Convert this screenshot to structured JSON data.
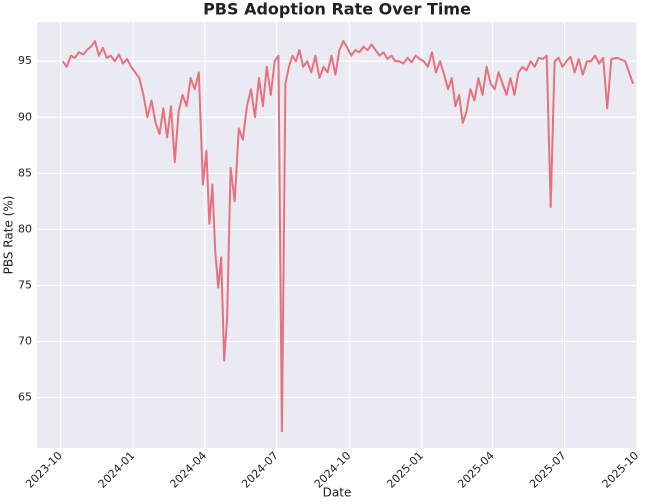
{
  "chart_data": {
    "type": "line",
    "title": "PBS Adoption Rate Over Time",
    "xlabel": "Date",
    "ylabel": "PBS Rate (%)",
    "color": "#e8717f",
    "grid": true,
    "xlim": [
      "2023-09",
      "2025-10"
    ],
    "ylim": [
      60.5,
      98.5
    ],
    "xticks": [
      "2023-10",
      "2024-01",
      "2024-04",
      "2024-07",
      "2024-10",
      "2025-01",
      "2025-04",
      "2025-07",
      "2025-10"
    ],
    "yticks": [
      65,
      70,
      75,
      80,
      85,
      90,
      95
    ],
    "x": [
      "2023-10",
      "2023-10",
      "2023-10",
      "2023-10",
      "2023-10",
      "2023-10",
      "2023-11",
      "2023-11",
      "2023-11",
      "2023-11",
      "2023-11",
      "2023-11",
      "2023-12",
      "2023-12",
      "2023-12",
      "2023-12",
      "2023-12",
      "2023-12",
      "2024-01",
      "2024-01",
      "2024-01",
      "2024-01",
      "2024-01",
      "2024-01",
      "2024-02",
      "2024-02",
      "2024-02",
      "2024-02",
      "2024-02",
      "2024-02",
      "2024-03",
      "2024-03",
      "2024-03",
      "2024-03",
      "2024-03",
      "2024-03",
      "2024-04",
      "2024-04",
      "2024-04",
      "2024-04",
      "2024-04",
      "2024-04",
      "2024-04",
      "2024-04",
      "2024-05",
      "2024-05",
      "2024-05",
      "2024-05",
      "2024-05",
      "2024-05",
      "2024-06",
      "2024-06",
      "2024-06",
      "2024-06",
      "2024-06",
      "2024-06",
      "2024-07",
      "2024-07",
      "2024-07",
      "2024-07",
      "2024-07",
      "2024-07",
      "2024-07",
      "2024-08",
      "2024-08",
      "2024-08",
      "2024-08",
      "2024-08",
      "2024-08",
      "2024-09",
      "2024-09",
      "2024-09",
      "2024-09",
      "2024-09",
      "2024-09",
      "2024-10",
      "2024-10",
      "2024-10",
      "2024-10",
      "2024-10",
      "2024-10",
      "2024-11",
      "2024-11",
      "2024-11",
      "2024-11",
      "2024-11",
      "2024-11",
      "2024-12",
      "2024-12",
      "2024-12",
      "2024-12",
      "2024-12",
      "2024-12",
      "2025-01",
      "2025-01",
      "2025-01",
      "2025-01",
      "2025-01",
      "2025-01",
      "2025-02",
      "2025-02",
      "2025-02",
      "2025-02",
      "2025-02",
      "2025-02",
      "2025-03",
      "2025-03",
      "2025-03",
      "2025-03",
      "2025-03",
      "2025-03",
      "2025-04",
      "2025-04",
      "2025-04",
      "2025-04",
      "2025-04",
      "2025-04",
      "2025-05",
      "2025-05",
      "2025-05",
      "2025-05",
      "2025-05",
      "2025-05",
      "2025-06",
      "2025-06",
      "2025-06",
      "2025-06",
      "2025-06",
      "2025-06",
      "2025-07",
      "2025-07",
      "2025-07",
      "2025-07",
      "2025-07",
      "2025-07",
      "2025-08",
      "2025-08",
      "2025-08",
      "2025-08",
      "2025-08",
      "2025-08",
      "2025-09",
      "2025-09",
      "2025-09"
    ],
    "values": [
      95.0,
      94.5,
      95.5,
      95.3,
      95.8,
      95.6,
      96.0,
      96.3,
      96.8,
      95.5,
      96.2,
      95.3,
      95.5,
      95.0,
      95.6,
      94.8,
      95.2,
      94.5,
      94.0,
      93.5,
      92.0,
      90.0,
      91.5,
      89.5,
      88.5,
      90.8,
      88.2,
      91.0,
      86.0,
      90.5,
      92.0,
      91.0,
      93.5,
      92.5,
      94.0,
      84.0,
      87.0,
      80.5,
      84.0,
      78.0,
      74.8,
      77.5,
      68.3,
      72.0,
      85.5,
      82.5,
      89.0,
      88.0,
      91.0,
      92.5,
      90.0,
      93.5,
      91.0,
      94.5,
      92.0,
      95.0,
      95.5,
      62.0,
      93.0,
      94.5,
      95.5,
      95.0,
      96.0,
      94.5,
      95.0,
      94.0,
      95.5,
      93.5,
      94.5,
      94.0,
      95.5,
      93.8,
      96.0,
      96.8,
      96.2,
      95.5,
      96.0,
      95.8,
      96.3,
      96.0,
      96.5,
      96.0,
      95.5,
      95.8,
      95.2,
      95.5,
      95.0,
      95.0,
      94.8,
      95.3,
      94.9,
      95.5,
      95.2,
      95.0,
      94.5,
      95.8,
      94.0,
      95.0,
      93.8,
      92.5,
      93.5,
      91.0,
      92.0,
      89.5,
      90.5,
      92.5,
      91.5,
      93.5,
      92.0,
      94.5,
      93.0,
      92.5,
      94.0,
      93.0,
      92.0,
      93.5,
      92.0,
      94.0,
      94.5,
      94.2,
      95.0,
      94.5,
      95.3,
      95.2,
      95.5,
      82.0,
      95.0,
      95.3,
      94.5,
      95.0,
      95.4,
      94.0,
      95.2,
      93.8,
      95.0,
      95.0,
      95.5,
      94.8,
      95.3,
      90.8,
      95.2,
      95.3,
      95.0,
      93.0
    ]
  }
}
